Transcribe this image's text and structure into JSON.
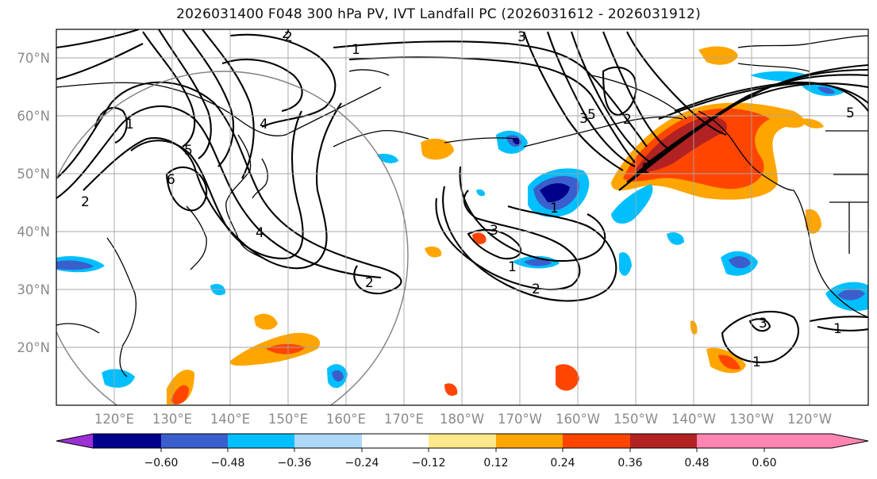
{
  "title": "2026031400 F048 300 hPa PV, IVT Landfall PC (2026031612 - 2026031912)",
  "colors": {
    "contour": "#000000",
    "coast": "#000000",
    "grid": "#a6a6a6",
    "tick_text": "#8a8a8a",
    "circle": "#808080"
  },
  "lat_labels": [
    "70°N",
    "60°N",
    "50°N",
    "40°N",
    "30°N",
    "20°N"
  ],
  "lon_labels": [
    "120°E",
    "130°E",
    "140°E",
    "150°E",
    "160°E",
    "170°E",
    "180°W",
    "170°W",
    "160°W",
    "150°W",
    "140°W",
    "130°W",
    "120°W"
  ],
  "colorbar": {
    "colors": [
      "#9b30d4",
      "#00008b",
      "#3a5fcd",
      "#00bfff",
      "#add8f7",
      "#ffffff",
      "#ffe98a",
      "#ffa500",
      "#ff4500",
      "#b22222",
      "#ff85b0"
    ],
    "ticks": [
      "−0.60",
      "−0.48",
      "−0.36",
      "−0.24",
      "−0.12",
      "0.12",
      "0.24",
      "0.36",
      "0.48",
      "0.60"
    ]
  },
  "contour_labels": [
    "1",
    "2",
    "3",
    "4",
    "5",
    "6",
    "1",
    "2",
    "3",
    "4",
    "1",
    "2",
    "3",
    "2",
    "1",
    "5",
    "3",
    "1",
    "2",
    "1",
    "2",
    "5",
    "1"
  ],
  "chart_data": {
    "type": "map",
    "title": "2026031400 F048 300 hPa PV, IVT Landfall PC (2026031612 - 2026031912)",
    "fields": [
      "300 hPa PV (contours)",
      "IVT landfall PC (shaded)"
    ],
    "lat_range": [
      10,
      75
    ],
    "lon_range": [
      110,
      250
    ],
    "colorbar_levels": [
      -0.6,
      -0.48,
      -0.36,
      -0.24,
      -0.12,
      0.12,
      0.24,
      0.36,
      0.48,
      0.6
    ]
  }
}
